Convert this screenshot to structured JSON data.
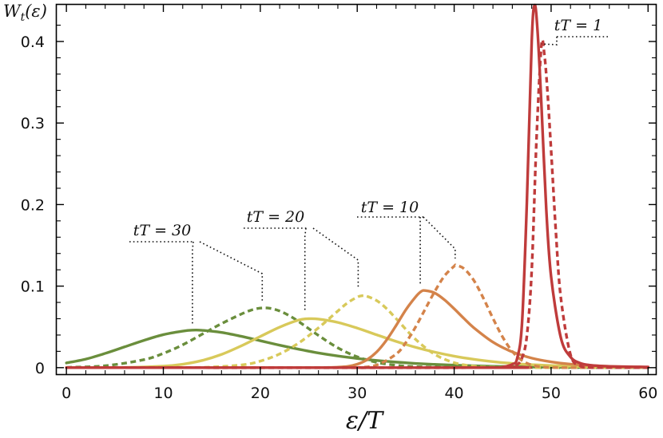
{
  "chart_data": {
    "type": "line",
    "title": "",
    "xlabel": "ε/T",
    "ylabel": "W_t(ε)",
    "xlim": [
      -1,
      60.8
    ],
    "ylim": [
      -0.008,
      0.445
    ],
    "x_ticks": [
      0,
      10,
      20,
      30,
      40,
      50,
      60
    ],
    "x_tick_labels": [
      "0",
      "10",
      "20",
      "30",
      "40",
      "50",
      "60"
    ],
    "y_ticks": [
      0,
      0.1,
      0.2,
      0.3,
      0.4
    ],
    "y_tick_labels": [
      "0",
      "0.1",
      "0.2",
      "0.3",
      "0.4"
    ],
    "grid": false,
    "legend": "none",
    "annotations": [
      {
        "text": "tT = 30",
        "targets": [
          {
            "x": 13,
            "y": 0.046
          },
          {
            "x": 20.2,
            "y": 0.073
          }
        ]
      },
      {
        "text": "tT = 20",
        "targets": [
          {
            "x": 24.6,
            "y": 0.06
          },
          {
            "x": 30.1,
            "y": 0.089
          }
        ]
      },
      {
        "text": "tT = 10",
        "targets": [
          {
            "x": 36.5,
            "y": 0.095
          },
          {
            "x": 40.1,
            "y": 0.126
          }
        ]
      },
      {
        "text": "tT = 1",
        "targets": [
          {
            "x": 49,
            "y": 0.395
          }
        ]
      }
    ],
    "series": [
      {
        "color": "#6a8e3c",
        "dash": "solid",
        "points": [
          [
            0,
            0.0058
          ],
          [
            2,
            0.0105
          ],
          [
            4,
            0.0175
          ],
          [
            6,
            0.0255
          ],
          [
            8,
            0.0335
          ],
          [
            10,
            0.0405
          ],
          [
            12,
            0.0448
          ],
          [
            13,
            0.046
          ],
          [
            14,
            0.0458
          ],
          [
            16,
            0.0432
          ],
          [
            18,
            0.0385
          ],
          [
            20,
            0.033
          ],
          [
            22,
            0.0275
          ],
          [
            24,
            0.0225
          ],
          [
            26,
            0.018
          ],
          [
            28,
            0.0143
          ],
          [
            30,
            0.0113
          ],
          [
            32,
            0.0088
          ],
          [
            34,
            0.0068
          ],
          [
            36,
            0.0052
          ],
          [
            38,
            0.004
          ],
          [
            40,
            0.003
          ],
          [
            44,
            0.0016
          ],
          [
            48,
            0.0008
          ],
          [
            52,
            0.0004
          ],
          [
            56,
            0.0002
          ],
          [
            60,
            0.0001
          ]
        ]
      },
      {
        "color": "#6a8e3c",
        "dash": "dashed",
        "points": [
          [
            0,
            0.0003
          ],
          [
            4,
            0.0023
          ],
          [
            8,
            0.0098
          ],
          [
            10,
            0.0175
          ],
          [
            12,
            0.028
          ],
          [
            14,
            0.041
          ],
          [
            16,
            0.054
          ],
          [
            18,
            0.0655
          ],
          [
            19,
            0.0703
          ],
          [
            20,
            0.073
          ],
          [
            21,
            0.0728
          ],
          [
            22,
            0.0695
          ],
          [
            23,
            0.0637
          ],
          [
            24,
            0.0562
          ],
          [
            26,
            0.0395
          ],
          [
            28,
            0.0243
          ],
          [
            30,
            0.0133
          ],
          [
            32,
            0.0065
          ],
          [
            34,
            0.0029
          ],
          [
            36,
            0.0012
          ],
          [
            40,
            0.0002
          ],
          [
            44,
            0.0
          ],
          [
            60,
            0.0
          ]
        ]
      },
      {
        "color": "#d8c95a",
        "dash": "solid",
        "points": [
          [
            0,
            0.0
          ],
          [
            6,
            0.0002
          ],
          [
            10,
            0.0018
          ],
          [
            12,
            0.0042
          ],
          [
            14,
            0.0088
          ],
          [
            16,
            0.0162
          ],
          [
            18,
            0.0265
          ],
          [
            20,
            0.0382
          ],
          [
            22,
            0.0497
          ],
          [
            24,
            0.0585
          ],
          [
            25,
            0.06
          ],
          [
            26,
            0.0596
          ],
          [
            28,
            0.0555
          ],
          [
            30,
            0.0485
          ],
          [
            32,
            0.0403
          ],
          [
            34,
            0.0322
          ],
          [
            36,
            0.025
          ],
          [
            38,
            0.019
          ],
          [
            40,
            0.0141
          ],
          [
            42,
            0.0103
          ],
          [
            44,
            0.0074
          ],
          [
            46,
            0.0052
          ],
          [
            48,
            0.0037
          ],
          [
            50,
            0.0026
          ],
          [
            54,
            0.0012
          ],
          [
            60,
            0.0004
          ]
        ]
      },
      {
        "color": "#d8c95a",
        "dash": "dashed",
        "points": [
          [
            0,
            0.0
          ],
          [
            10,
            0.0
          ],
          [
            14,
            0.0003
          ],
          [
            18,
            0.0032
          ],
          [
            20,
            0.008
          ],
          [
            22,
            0.0168
          ],
          [
            24,
            0.0305
          ],
          [
            26,
            0.0488
          ],
          [
            28,
            0.0695
          ],
          [
            29,
            0.0795
          ],
          [
            30,
            0.0865
          ],
          [
            30.5,
            0.0882
          ],
          [
            31,
            0.0875
          ],
          [
            32,
            0.0823
          ],
          [
            33,
            0.0727
          ],
          [
            34,
            0.0603
          ],
          [
            36,
            0.0349
          ],
          [
            38,
            0.0163
          ],
          [
            40,
            0.0061
          ],
          [
            42,
            0.0018
          ],
          [
            44,
            0.0004
          ],
          [
            48,
            0.0
          ],
          [
            60,
            0.0
          ]
        ]
      },
      {
        "color": "#d4834a",
        "dash": "solid",
        "points": [
          [
            0,
            0.0
          ],
          [
            24,
            0.0
          ],
          [
            27,
            0.0002
          ],
          [
            29,
            0.0015
          ],
          [
            30,
            0.0042
          ],
          [
            31,
            0.0097
          ],
          [
            32,
            0.0192
          ],
          [
            33,
            0.0335
          ],
          [
            34,
            0.0515
          ],
          [
            35,
            0.0707
          ],
          [
            36,
            0.0865
          ],
          [
            36.6,
            0.0935
          ],
          [
            37,
            0.0945
          ],
          [
            38,
            0.0915
          ],
          [
            39,
            0.0832
          ],
          [
            40,
            0.0722
          ],
          [
            41,
            0.0604
          ],
          [
            42,
            0.0492
          ],
          [
            44,
            0.0313
          ],
          [
            46,
            0.0193
          ],
          [
            48,
            0.0117
          ],
          [
            50,
            0.0071
          ],
          [
            52,
            0.0043
          ],
          [
            56,
            0.0016
          ],
          [
            60,
            0.0006
          ]
        ]
      },
      {
        "color": "#d4834a",
        "dash": "dashed",
        "points": [
          [
            0,
            0.0
          ],
          [
            28,
            0.0
          ],
          [
            30,
            0.0002
          ],
          [
            32,
            0.0032
          ],
          [
            34,
            0.0165
          ],
          [
            35,
            0.0305
          ],
          [
            36,
            0.0495
          ],
          [
            37,
            0.0715
          ],
          [
            38,
            0.0935
          ],
          [
            39,
            0.1125
          ],
          [
            40,
            0.1245
          ],
          [
            40.2,
            0.1255
          ],
          [
            41,
            0.1215
          ],
          [
            42,
            0.1075
          ],
          [
            43,
            0.0855
          ],
          [
            44,
            0.0605
          ],
          [
            45,
            0.0375
          ],
          [
            46,
            0.0198
          ],
          [
            47,
            0.0088
          ],
          [
            48,
            0.0032
          ],
          [
            49,
            0.001
          ],
          [
            50,
            0.0003
          ],
          [
            52,
            0.0
          ],
          [
            60,
            0.0
          ]
        ]
      },
      {
        "color": "#bf3b3b",
        "dash": "solid",
        "points": [
          [
            0,
            0.0
          ],
          [
            44,
            0.0
          ],
          [
            45,
            0.0006
          ],
          [
            46,
            0.0042
          ],
          [
            46.5,
            0.0115
          ],
          [
            47,
            0.0548
          ],
          [
            47.5,
            0.203
          ],
          [
            48,
            0.4005
          ],
          [
            48.3,
            0.4445
          ],
          [
            48.6,
            0.413
          ],
          [
            49,
            0.3223
          ],
          [
            49.5,
            0.1942
          ],
          [
            50,
            0.1116
          ],
          [
            51,
            0.0369
          ],
          [
            52,
            0.0131
          ],
          [
            53,
            0.0055
          ],
          [
            54,
            0.0031
          ],
          [
            56,
            0.0016
          ],
          [
            60,
            0.0008
          ]
        ]
      },
      {
        "color": "#bf3b3b",
        "dash": "dashed",
        "points": [
          [
            0,
            0.0
          ],
          [
            44,
            0.0
          ],
          [
            46,
            0.001
          ],
          [
            46.5,
            0.0036
          ],
          [
            47,
            0.0119
          ],
          [
            47.5,
            0.039
          ],
          [
            48,
            0.1195
          ],
          [
            48.5,
            0.2822
          ],
          [
            49,
            0.3952
          ],
          [
            49.3,
            0.3845
          ],
          [
            49.6,
            0.3428
          ],
          [
            50,
            0.2664
          ],
          [
            50.5,
            0.1648
          ],
          [
            51,
            0.086
          ],
          [
            52,
            0.016
          ],
          [
            53,
            0.0022
          ],
          [
            54,
            0.0002
          ],
          [
            56,
            0.0
          ],
          [
            60,
            0.0
          ]
        ]
      }
    ]
  }
}
